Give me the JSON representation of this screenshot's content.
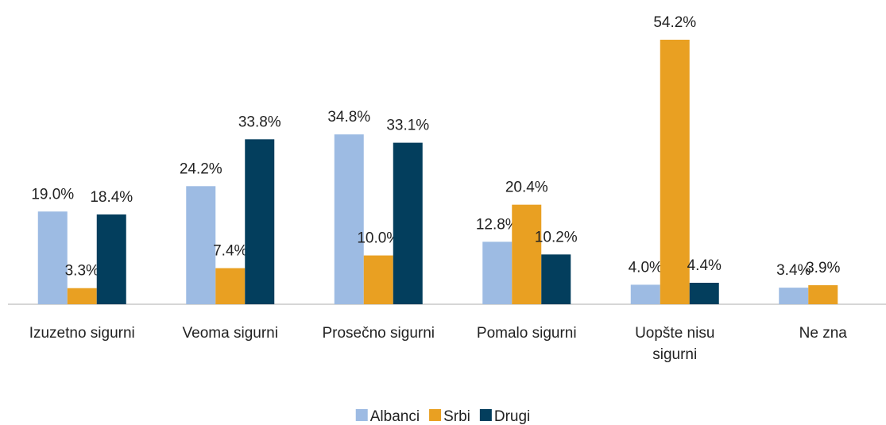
{
  "chart_data": {
    "type": "bar",
    "categories": [
      "Izuzetno sigurni",
      "Veoma sigurni",
      "Prosečno sigurni",
      "Pomalo sigurni",
      "Uopšte nisu sigurni",
      "Ne zna"
    ],
    "series": [
      {
        "name": "Albanci",
        "color": "#9dbbe3",
        "values": [
          19.0,
          24.2,
          34.8,
          12.8,
          4.0,
          3.4
        ],
        "value_labels": [
          "19.0%",
          "24.2%",
          "34.8%",
          "12.8%",
          "4.0%",
          "3.4%"
        ]
      },
      {
        "name": "Srbi",
        "color": "#e9a022",
        "values": [
          3.3,
          7.4,
          10.0,
          20.4,
          54.2,
          3.9
        ],
        "value_labels": [
          "3.3%",
          "7.4%",
          "10.0%",
          "20.4%",
          "54.2%",
          "3.9%"
        ]
      },
      {
        "name": "Drugi",
        "color": "#033e5d",
        "values": [
          18.4,
          33.8,
          33.1,
          10.2,
          4.4,
          null
        ],
        "value_labels": [
          "18.4%",
          "33.8%",
          "33.1%",
          "10.2%",
          "4.4%",
          null
        ]
      }
    ],
    "legend": "bottom"
  }
}
